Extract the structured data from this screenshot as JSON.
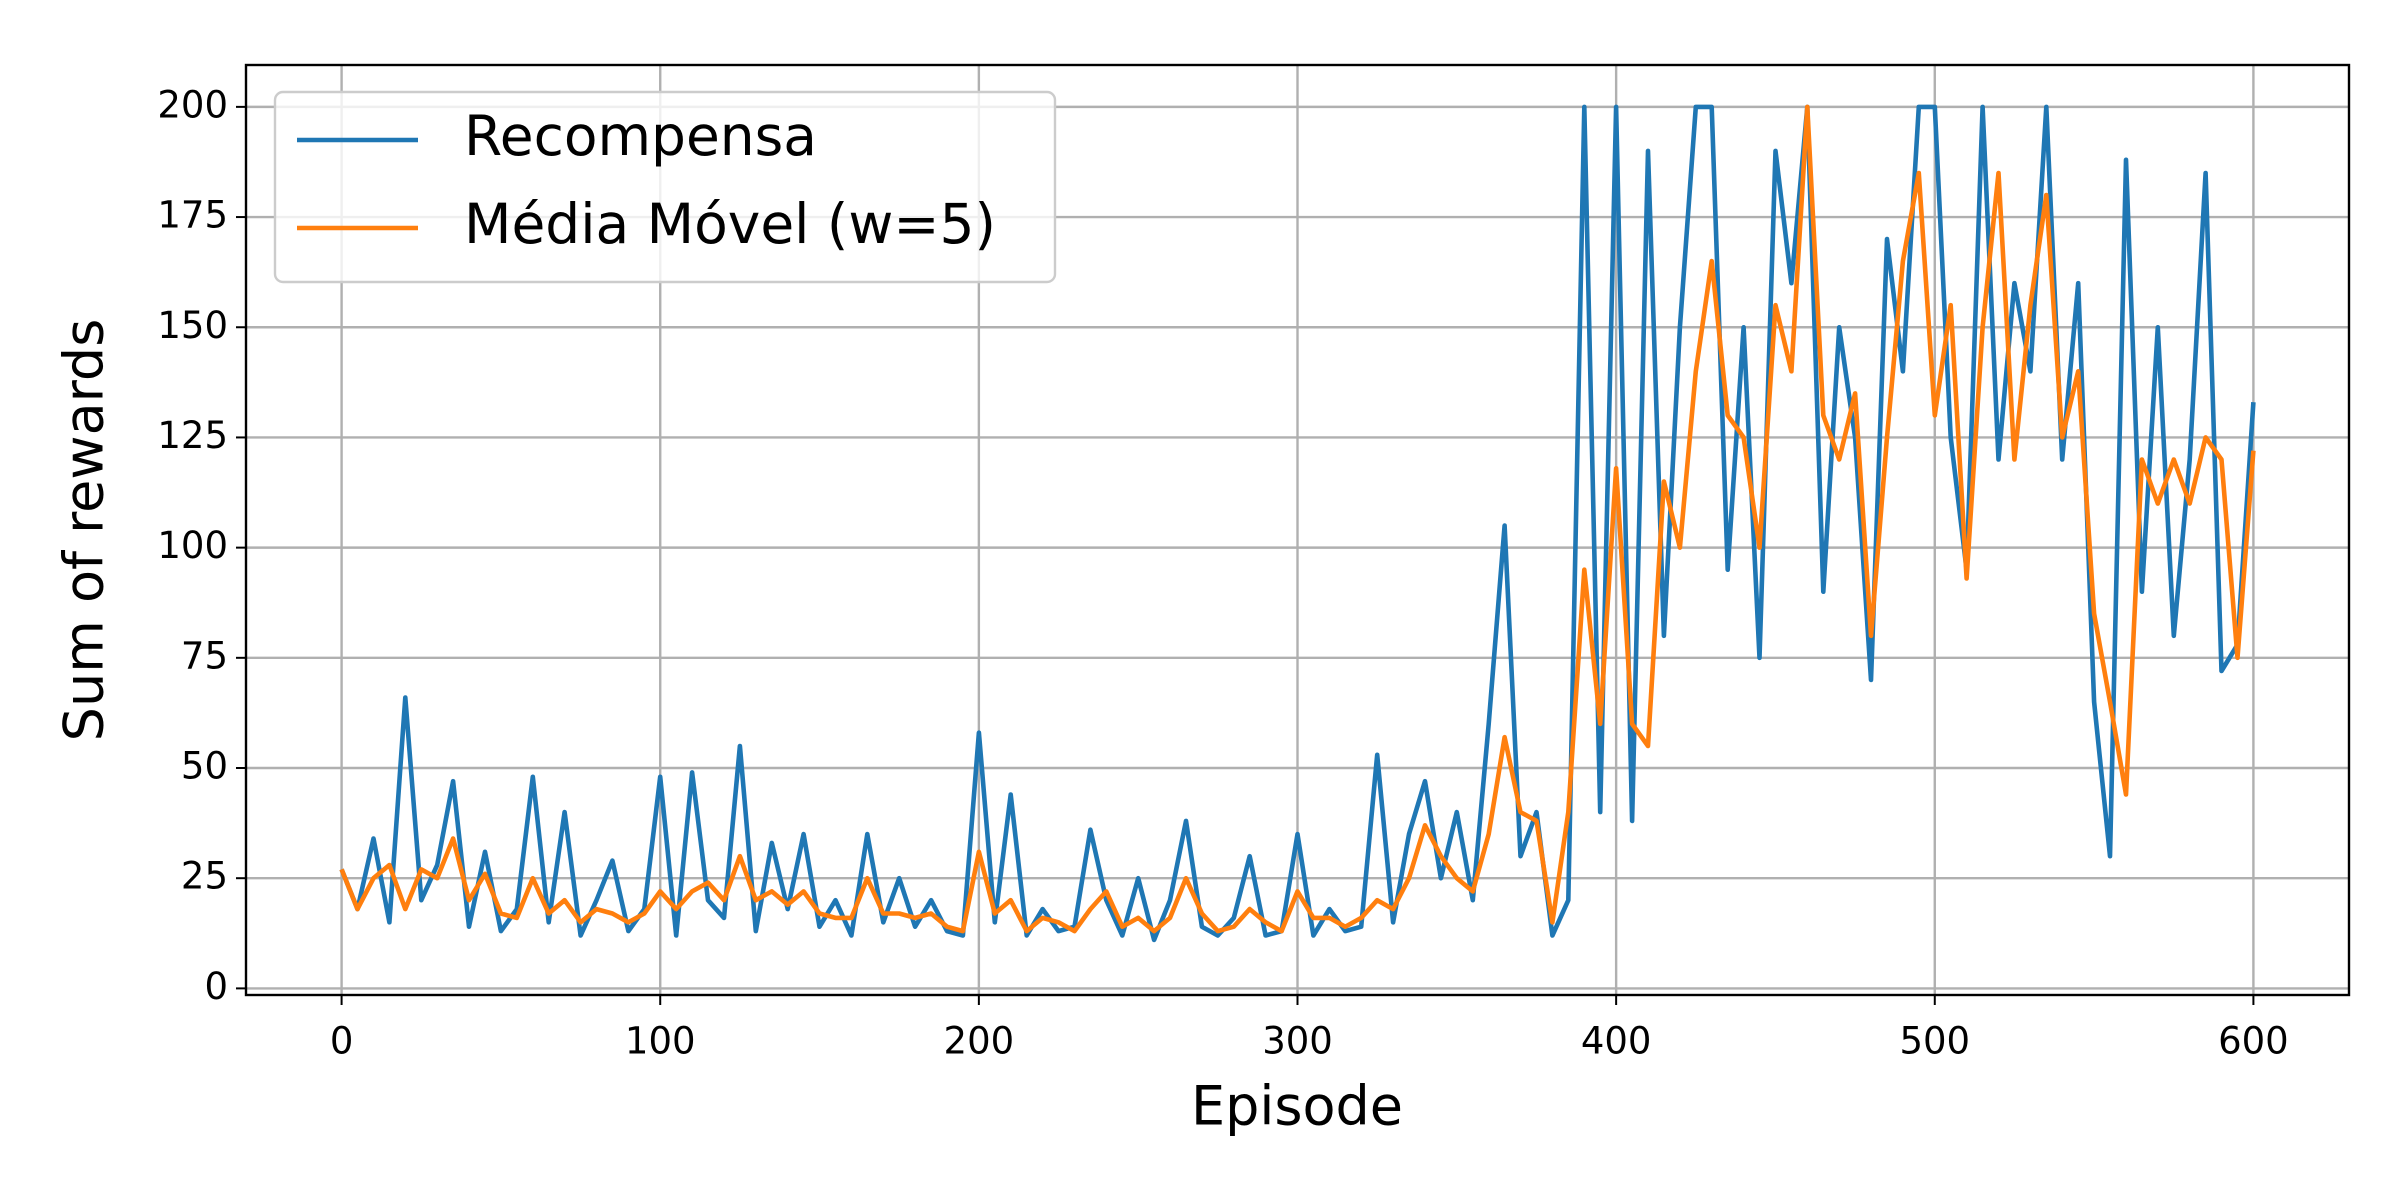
{
  "chart_data": {
    "type": "line",
    "xlabel": "Episode",
    "ylabel": "Sum of rewards",
    "x": [
      0,
      5,
      10,
      15,
      20,
      25,
      30,
      35,
      40,
      45,
      50,
      55,
      60,
      65,
      70,
      75,
      80,
      85,
      90,
      95,
      100,
      105,
      110,
      115,
      120,
      125,
      130,
      135,
      140,
      145,
      150,
      155,
      160,
      165,
      170,
      175,
      180,
      185,
      190,
      195,
      200,
      205,
      210,
      215,
      220,
      225,
      230,
      235,
      240,
      245,
      250,
      255,
      260,
      265,
      270,
      275,
      280,
      285,
      290,
      295,
      300,
      305,
      310,
      315,
      320,
      325,
      330,
      335,
      340,
      345,
      350,
      355,
      360,
      365,
      370,
      375,
      380,
      385,
      390,
      395,
      400,
      405,
      410,
      415,
      420,
      425,
      430,
      435,
      440,
      445,
      450,
      455,
      460,
      465,
      470,
      475,
      480,
      485,
      490,
      495,
      500,
      505,
      510,
      515,
      520,
      525,
      530,
      535,
      540,
      545,
      550,
      555,
      560,
      565,
      570,
      575,
      580,
      585,
      590,
      595,
      600
    ],
    "series": [
      {
        "name": "Recompensa",
        "color": "#1f77b4",
        "values": [
          27,
          18,
          34,
          15,
          66,
          20,
          28,
          47,
          14,
          31,
          13,
          18,
          48,
          15,
          40,
          12,
          20,
          29,
          13,
          18,
          48,
          12,
          49,
          20,
          16,
          55,
          13,
          33,
          18,
          35,
          14,
          20,
          12,
          35,
          15,
          25,
          14,
          20,
          13,
          12,
          58,
          15,
          44,
          12,
          18,
          13,
          14,
          36,
          20,
          12,
          25,
          11,
          20,
          38,
          14,
          12,
          16,
          30,
          12,
          13,
          35,
          12,
          18,
          13,
          14,
          53,
          15,
          35,
          47,
          25,
          40,
          20,
          60,
          105,
          30,
          40,
          12,
          20,
          200,
          40,
          200,
          38,
          190,
          80,
          150,
          200,
          200,
          95,
          150,
          75,
          190,
          160,
          200,
          90,
          150,
          125,
          70,
          170,
          140,
          200,
          200,
          125,
          95,
          200,
          120,
          160,
          140,
          200,
          120,
          160,
          65,
          30,
          188,
          90,
          150,
          80,
          120,
          185,
          72,
          78,
          133
        ]
      },
      {
        "name": "Média Móvel (w=5)",
        "color": "#ff7f0e",
        "values": [
          27,
          18,
          25,
          28,
          18,
          27,
          25,
          34,
          20,
          26,
          17,
          16,
          25,
          17,
          20,
          15,
          18,
          17,
          15,
          17,
          22,
          18,
          22,
          24,
          20,
          30,
          20,
          22,
          19,
          22,
          17,
          16,
          16,
          25,
          17,
          17,
          16,
          17,
          14,
          13,
          31,
          17,
          20,
          13,
          16,
          15,
          13,
          18,
          22,
          14,
          16,
          13,
          16,
          25,
          17,
          13,
          14,
          18,
          15,
          13,
          22,
          16,
          16,
          14,
          16,
          20,
          18,
          25,
          37,
          30,
          25,
          22,
          35,
          57,
          40,
          38,
          15,
          40,
          95,
          60,
          118,
          60,
          55,
          115,
          100,
          140,
          165,
          130,
          125,
          100,
          155,
          140,
          200,
          130,
          120,
          135,
          80,
          125,
          165,
          185,
          130,
          155,
          93,
          150,
          185,
          120,
          155,
          180,
          125,
          140,
          85,
          65,
          44,
          120,
          110,
          120,
          110,
          125,
          120,
          75,
          122
        ]
      }
    ],
    "xlim": [
      -30,
      630
    ],
    "xticks": [
      0,
      100,
      200,
      300,
      400,
      500,
      600
    ],
    "ylim": [
      -1.5,
      209.5
    ],
    "yticks": [
      0,
      25,
      50,
      75,
      100,
      125,
      150,
      175,
      200
    ],
    "grid": true,
    "legend": "upper left"
  }
}
